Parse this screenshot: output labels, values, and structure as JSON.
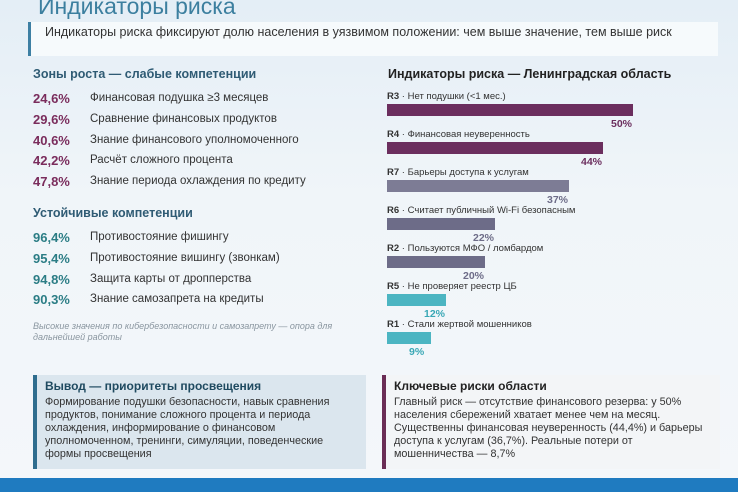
{
  "title": "Индикаторы риска",
  "intro": "Индикаторы риска фиксируют долю населения в уязвимом положении: чем выше значение, тем выше риск",
  "weak": {
    "heading": "Зоны роста — слабые компетенции",
    "items": [
      {
        "pct": "24,6%",
        "label": "Финансовая подушка ≥3 месяцев"
      },
      {
        "pct": "29,6%",
        "label": "Сравнение финансовых продуктов"
      },
      {
        "pct": "40,6%",
        "label": "Знание финансового уполномоченного"
      },
      {
        "pct": "42,2%",
        "label": "Расчёт сложного процента"
      },
      {
        "pct": "47,8%",
        "label": "Знание периода охлаждения по кредиту"
      }
    ]
  },
  "strong": {
    "heading": "Устойчивые компетенции",
    "items": [
      {
        "pct": "96,4%",
        "label": "Противостояние фишингу"
      },
      {
        "pct": "95,4%",
        "label": "Противостояние вишингу (звонкам)"
      },
      {
        "pct": "94,8%",
        "label": "Защита карты от дропперства"
      },
      {
        "pct": "90,3%",
        "label": "Знание самозапрета на кредиты"
      }
    ]
  },
  "note": "Высокие значения по кибербезопасности и самозапрету — опора для дальнейшей работы",
  "chart_data": {
    "type": "bar",
    "orientation": "horizontal",
    "title": "Индикаторы риска — Ленинградская область",
    "codes": [
      "R3",
      "R4",
      "R7",
      "R6",
      "R2",
      "R5",
      "R1"
    ],
    "categories": [
      "Нет подушки (<1 мес.)",
      "Финансовая неуверенность",
      "Барьеры доступа к услугам",
      "Считает публичный Wi-Fi безопасным",
      "Пользуются МФО / ломбардом",
      "Не проверяет реестр ЦБ",
      "Стали жертвой мошенников"
    ],
    "values": [
      50,
      44,
      37,
      22,
      20,
      12,
      9
    ],
    "value_labels": [
      "50%",
      "44%",
      "37%",
      "22%",
      "20%",
      "12%",
      "9%"
    ],
    "colors": [
      "#6b2e5e",
      "#6b2e5e",
      "#7d7c95",
      "#6d6c88",
      "#6d6c88",
      "#4cb5c2",
      "#4cb5c2"
    ],
    "label_colors": [
      "#6b2e5e",
      "#6b2e5e",
      "#6d6c88",
      "#6d6c88",
      "#6d6c88",
      "#3aa8b6",
      "#3aa8b6"
    ],
    "xlim": [
      0,
      50
    ]
  },
  "conclusion": {
    "heading": "Вывод — приоритеты просвещения",
    "text": "Формирование подушки безопасности, навык сравнения продуктов, понимание сложного процента и периода охлаждения, информирование о финансовом уполномоченном, тренинги, симуляции, поведенческие формы просвещения"
  },
  "risks": {
    "heading": "Ключевые риски области",
    "text": "Главный риск — отсутствие финансового резерва: у 50% населения сбережений хватает менее чем на месяц. Существенны финансовая неуверенность (44,4%) и барьеры доступа к услугам (36,7%). Реальные потери от мошенничества — 8,7%"
  }
}
